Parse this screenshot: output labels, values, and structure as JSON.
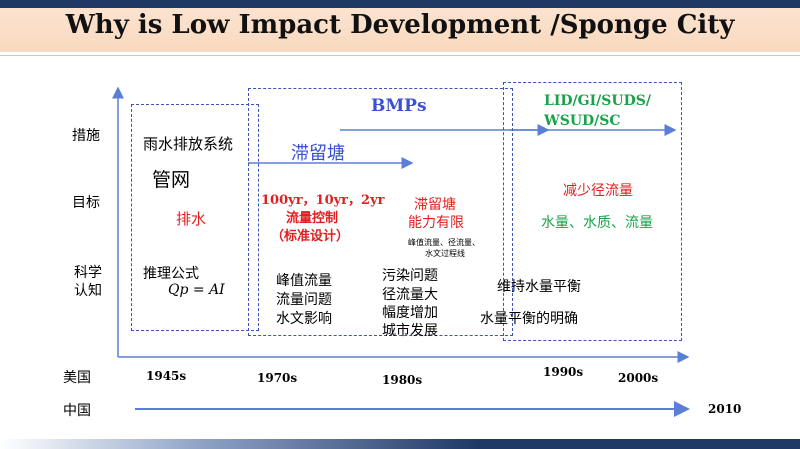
{
  "title": "Why is Low Impact Development /Sponge City",
  "rows": {
    "measures": "措施",
    "goals": "目标",
    "science_line1": "科学",
    "science_line2": "认知"
  },
  "countries": {
    "usa": "美国",
    "china": "中国"
  },
  "years": {
    "y1945": "1945s",
    "y1970": "1970s",
    "y1980": "1980s",
    "y1990": "1990s",
    "y2000": "2000s",
    "y2010": "2010"
  },
  "phase1": {
    "measure": "雨水排放系统",
    "measure2": "管网",
    "goal": "排水",
    "science1": "推理公式",
    "formula": "Qp = AI"
  },
  "phase2": {
    "bmps": "BMPs",
    "detention": "滞留塘",
    "goal_line1": "100yr，10yr，2yr",
    "goal_line2": "流量控制",
    "goal_line3": "（标准设计）",
    "science_line1": "峰值流量",
    "science_line2": "流量问题",
    "science_line3": "水文影响"
  },
  "phase3": {
    "goal_line1": "滞留塘",
    "goal_line2": "能力有限",
    "small_line1": "峰值流量、径流量、",
    "small_line2": "水文过程线",
    "science_line1": "污染问题",
    "science_line2": "径流量大",
    "science_line3": "幅度增加",
    "science_line4": "城市发展"
  },
  "phase4": {
    "lid_line1": "LID/GI/SUDS/",
    "lid_line2": "WSUD/SC",
    "goal_line1": "减少径流量",
    "goal_line2": "水量、水质、流量",
    "science_line1": "维持水量平衡",
    "science_line2": "水量平衡的明确"
  },
  "colors": {
    "red": "#e02020",
    "blue": "#3b4fd8",
    "green": "#19a24a",
    "box_border": "#3a55b5",
    "arrow": "#5b7fd6"
  }
}
